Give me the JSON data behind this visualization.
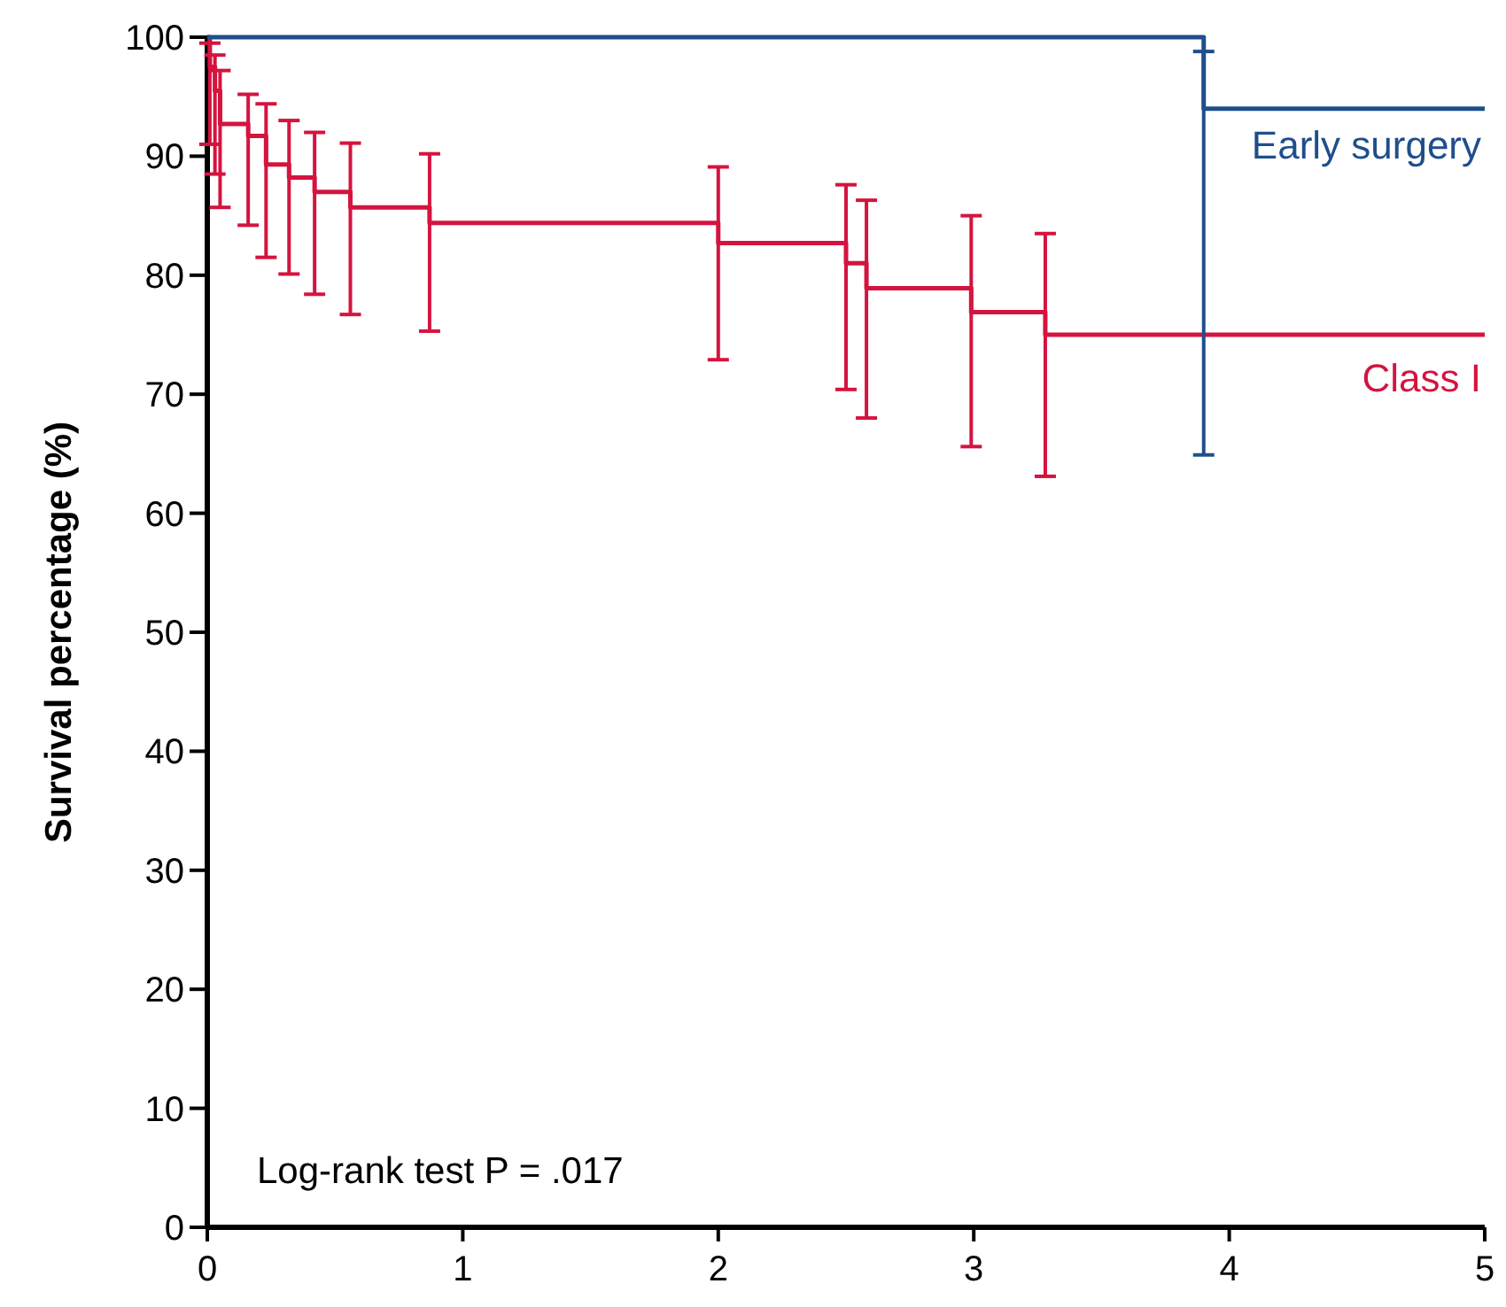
{
  "chart_data": {
    "type": "step",
    "ylabel": "Survival percentage (%)",
    "xlim": [
      0,
      5
    ],
    "ylim": [
      0,
      100
    ],
    "xticks": [
      0,
      1,
      2,
      3,
      4,
      5
    ],
    "yticks": [
      0,
      10,
      20,
      30,
      40,
      50,
      60,
      70,
      80,
      90,
      100
    ],
    "grid": false,
    "legend": false,
    "annotations": [
      "Log-rank test P = .017"
    ],
    "series": [
      {
        "name": "Early surgery",
        "color": "#1f4e8c",
        "x": [
          0,
          3.9,
          5
        ],
        "values": [
          100,
          94,
          94
        ],
        "errors": [
          null,
          [
            64.9,
            98.8
          ],
          null
        ]
      },
      {
        "name": "Class I",
        "color": "#d4143f",
        "x": [
          0,
          0.01,
          0.03,
          0.05,
          0.16,
          0.23,
          0.32,
          0.42,
          0.56,
          0.87,
          2.0,
          2.5,
          2.58,
          2.99,
          3.28,
          5
        ],
        "values": [
          100,
          97.5,
          95.5,
          92.7,
          91.7,
          89.3,
          88.2,
          87,
          85.7,
          84.4,
          82.7,
          81,
          78.9,
          76.9,
          75,
          75
        ],
        "errors": [
          null,
          [
            91,
            99.5
          ],
          [
            88.5,
            98.5
          ],
          [
            85.7,
            97.2
          ],
          [
            84.2,
            95.2
          ],
          [
            81.5,
            94.4
          ],
          [
            80.1,
            93
          ],
          [
            78.4,
            92
          ],
          [
            76.7,
            91.1
          ],
          [
            75.3,
            90.2
          ],
          [
            72.9,
            89.1
          ],
          [
            70.4,
            87.6
          ],
          [
            68,
            86.3
          ],
          [
            65.6,
            85
          ],
          [
            63.1,
            83.5
          ],
          null
        ]
      }
    ]
  }
}
